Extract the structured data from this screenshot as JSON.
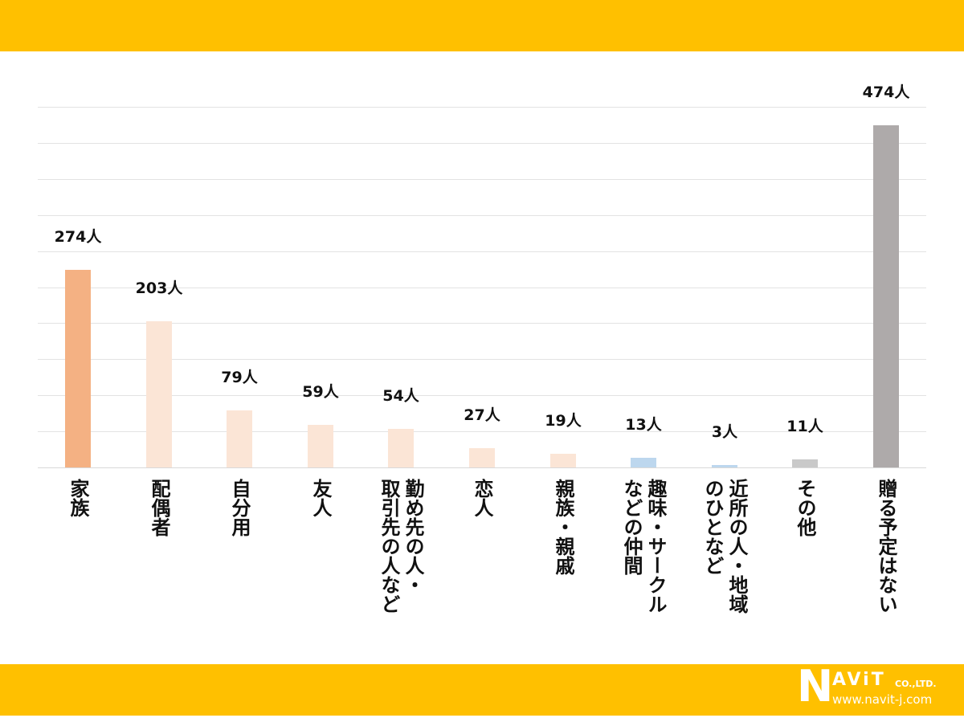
{
  "colors": {
    "band": "#FFC000",
    "bar_primary": "#F4B183",
    "bar_secondary": "#FBE5D6",
    "bar_blue": "#BDD7EE",
    "bar_gray_light": "#C9C9C9",
    "bar_gray_dark": "#AEAAAA"
  },
  "logo": {
    "initial": "N",
    "rest": "AViT",
    "suffix": "CO.,LTD.",
    "url": "www.navit-j.com"
  },
  "chart_data": {
    "type": "bar",
    "title": "",
    "xlabel": "",
    "ylabel": "",
    "ylim": [
      0,
      500
    ],
    "grid": true,
    "gridline_step": 50,
    "unit": "人",
    "categories": [
      "家族",
      "配偶者",
      "自分用",
      "友人",
      "勤め先の人・取引先の人など",
      "恋人",
      "親族・親戚",
      "趣味・サークルなどの仲間",
      "近所の人・地域のひとなど",
      "その他",
      "贈る予定はない"
    ],
    "values": [
      274,
      203,
      79,
      59,
      54,
      27,
      19,
      13,
      3,
      11,
      474
    ],
    "data_labels": [
      "274人",
      "203人",
      "79人",
      "59人",
      "54人",
      "27人",
      "19人",
      "13人",
      "3人",
      "11人",
      "474人"
    ],
    "bar_colors": [
      "#F4B183",
      "#FBE5D6",
      "#FBE5D6",
      "#FBE5D6",
      "#FBE5D6",
      "#FBE5D6",
      "#FBE5D6",
      "#BDD7EE",
      "#BDD7EE",
      "#C9C9C9",
      "#AEAAAA"
    ],
    "label_lines": [
      [
        "家族"
      ],
      [
        "配偶者"
      ],
      [
        "自分用"
      ],
      [
        "友人"
      ],
      [
        "勤め先の人・",
        "取引先の人など"
      ],
      [
        "恋人"
      ],
      [
        "親族・親戚"
      ],
      [
        "趣味・サークル",
        "などの仲間"
      ],
      [
        "近所の人・地域",
        "のひとなど"
      ],
      [
        "その他"
      ],
      [
        "贈る予定はない"
      ]
    ]
  }
}
